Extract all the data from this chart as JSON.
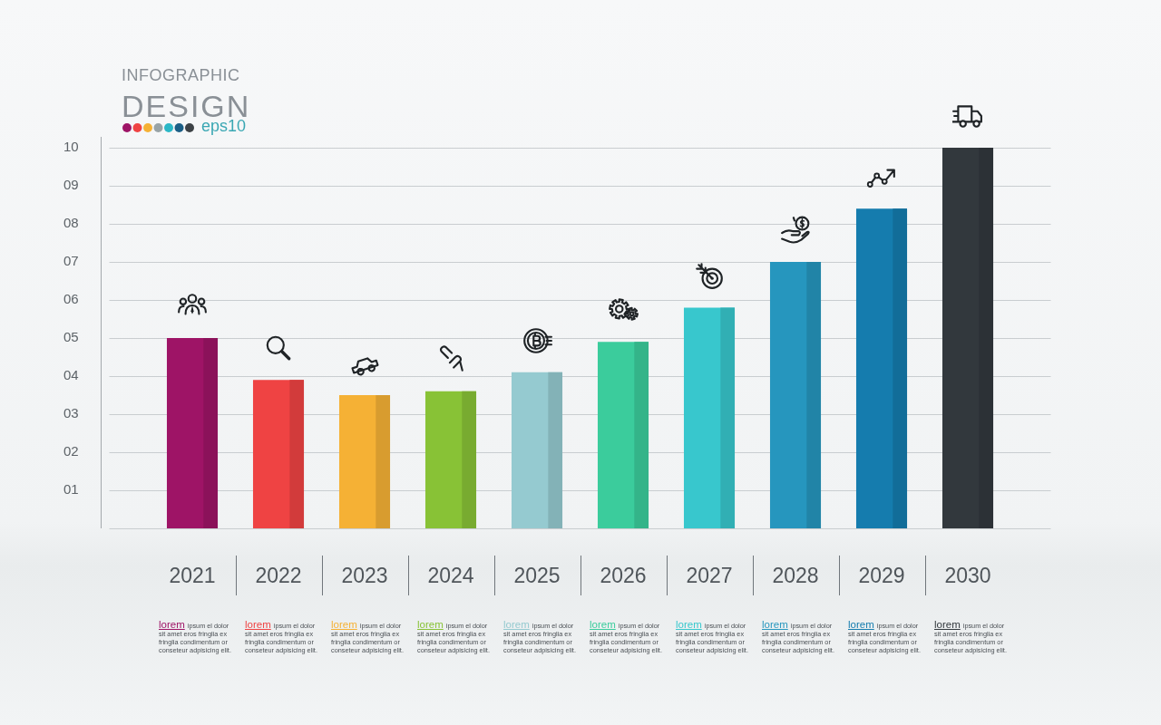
{
  "chart_data": {
    "type": "bar",
    "title": "INFOGRAPHIC DESIGN",
    "subtitle": "eps10",
    "categories": [
      "2021",
      "2022",
      "2023",
      "2024",
      "2025",
      "2026",
      "2027",
      "2028",
      "2029",
      "2030"
    ],
    "values": [
      5.0,
      3.9,
      3.5,
      3.6,
      4.1,
      4.9,
      5.8,
      7.0,
      8.4,
      10.0
    ],
    "colors": [
      "#9e1466",
      "#ef4343",
      "#f5b135",
      "#88c236",
      "#95cad0",
      "#3bcc9c",
      "#38c7cd",
      "#2696be",
      "#157cae",
      "#32383d"
    ],
    "ylim": [
      0,
      10
    ],
    "yticks": [
      {
        "value": 0,
        "label": null
      },
      {
        "value": 1,
        "label": "01"
      },
      {
        "value": 2,
        "label": "02"
      },
      {
        "value": 3,
        "label": "03"
      },
      {
        "value": 4,
        "label": "04"
      },
      {
        "value": 5,
        "label": "05"
      },
      {
        "value": 6,
        "label": "06"
      },
      {
        "value": 7,
        "label": "07"
      },
      {
        "value": 8,
        "label": "08"
      },
      {
        "value": 9,
        "label": "09"
      },
      10
    ],
    "grid": "y",
    "annotations": [
      "lorem ipsum el dolor sit amet eros fringlia ex fringlia condimentum or conseteur adpisicing elit.",
      "lorem ipsum el dolor sit amet eros fringlia ex fringlia condimentum or conseteur adpisicing elit.",
      "lorem ipsum el dolor sit amet eros fringlia ex fringlia condimentum or conseteur adpisicing elit.",
      "lorem ipsum el dolor sit amet eros fringlia ex fringlia condimentum or conseteur adpisicing elit.",
      "lorem ipsum el dolor sit amet eros fringlia ex fringlia condimentum or conseteur adpisicing elit.",
      "lorem ipsum el dolor sit amet eros fringlia ex fringlia condimentum or conseteur adpisicing elit.",
      "lorem ipsum el dolor sit amet eros fringlia ex fringlia condimentum or conseteur adpisicing elit.",
      "lorem ipsum el dolor sit amet eros fringlia ex fringlia condimentum or conseteur adpisicing elit.",
      "lorem ipsum el dolor sit amet eros fringlia ex fringlia condimentum or conseteur adpisicing elit.",
      "lorem ipsum el dolor sit amet eros fringlia ex fringlia condimentum or conseteur adpisicing elit."
    ]
  }
}
